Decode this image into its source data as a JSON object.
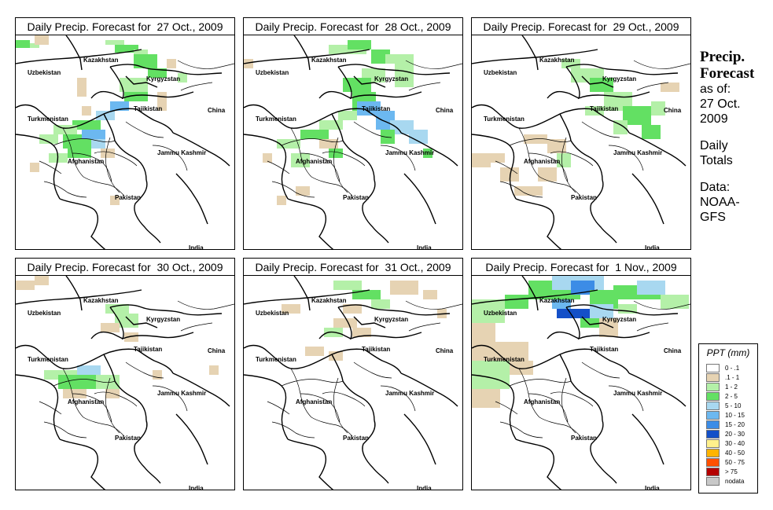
{
  "panels": [
    {
      "title": "Daily Precip. Forecast for  27 Oct., 2009",
      "pattern": "day1"
    },
    {
      "title": "Daily Precip. Forecast for  28 Oct., 2009",
      "pattern": "day2"
    },
    {
      "title": "Daily Precip. Forecast for  29 Oct., 2009",
      "pattern": "day3"
    },
    {
      "title": "Daily Precip. Forecast for  30 Oct., 2009",
      "pattern": "day4"
    },
    {
      "title": "Daily Precip. Forecast for  31 Oct., 2009",
      "pattern": "day5"
    },
    {
      "title": "Daily Precip. Forecast for  1 Nov., 2009",
      "pattern": "day6"
    }
  ],
  "map_labels": {
    "kazakhstan": "Kazakhstan",
    "uzbekistan": "Uzbekistan",
    "kyrgyzstan": "Kyrgyzstan",
    "tajikistan": "Tajikistan",
    "turkmenistan": "Turkmenistan",
    "china": "China",
    "afghanistan": "Afghanistan",
    "jammu_kashmir": "Jammu Kashmir",
    "pakistan": "Pakistan",
    "india": "India"
  },
  "sidebar": {
    "title1": "Precip.",
    "title2": "Forecast",
    "asof1": "as of:",
    "asof2": "27 Oct.",
    "asof3": "2009",
    "daily1": "Daily",
    "daily2": "Totals",
    "data1": "Data:",
    "data2": "NOAA-",
    "data3": "GFS"
  },
  "legend": {
    "title": "PPT (mm)",
    "items": [
      {
        "label": "0 - .1",
        "color": "#ffffff"
      },
      {
        "label": ".1 - 1",
        "color": "#e6d3b3"
      },
      {
        "label": "1 - 2",
        "color": "#b4f0a8"
      },
      {
        "label": "2 - 5",
        "color": "#63e063"
      },
      {
        "label": "5 - 10",
        "color": "#a8d8f0"
      },
      {
        "label": "10 - 15",
        "color": "#6cb8f0"
      },
      {
        "label": "15 - 20",
        "color": "#3c8ce6"
      },
      {
        "label": "20 - 30",
        "color": "#1450c8"
      },
      {
        "label": "30 - 40",
        "color": "#fff08c"
      },
      {
        "label": "40 - 50",
        "color": "#ffb400"
      },
      {
        "label": "50 - 75",
        "color": "#ff5000"
      },
      {
        "label": "> 75",
        "color": "#b40000"
      },
      {
        "label": "nodata",
        "color": "#c8c8c8"
      }
    ]
  }
}
